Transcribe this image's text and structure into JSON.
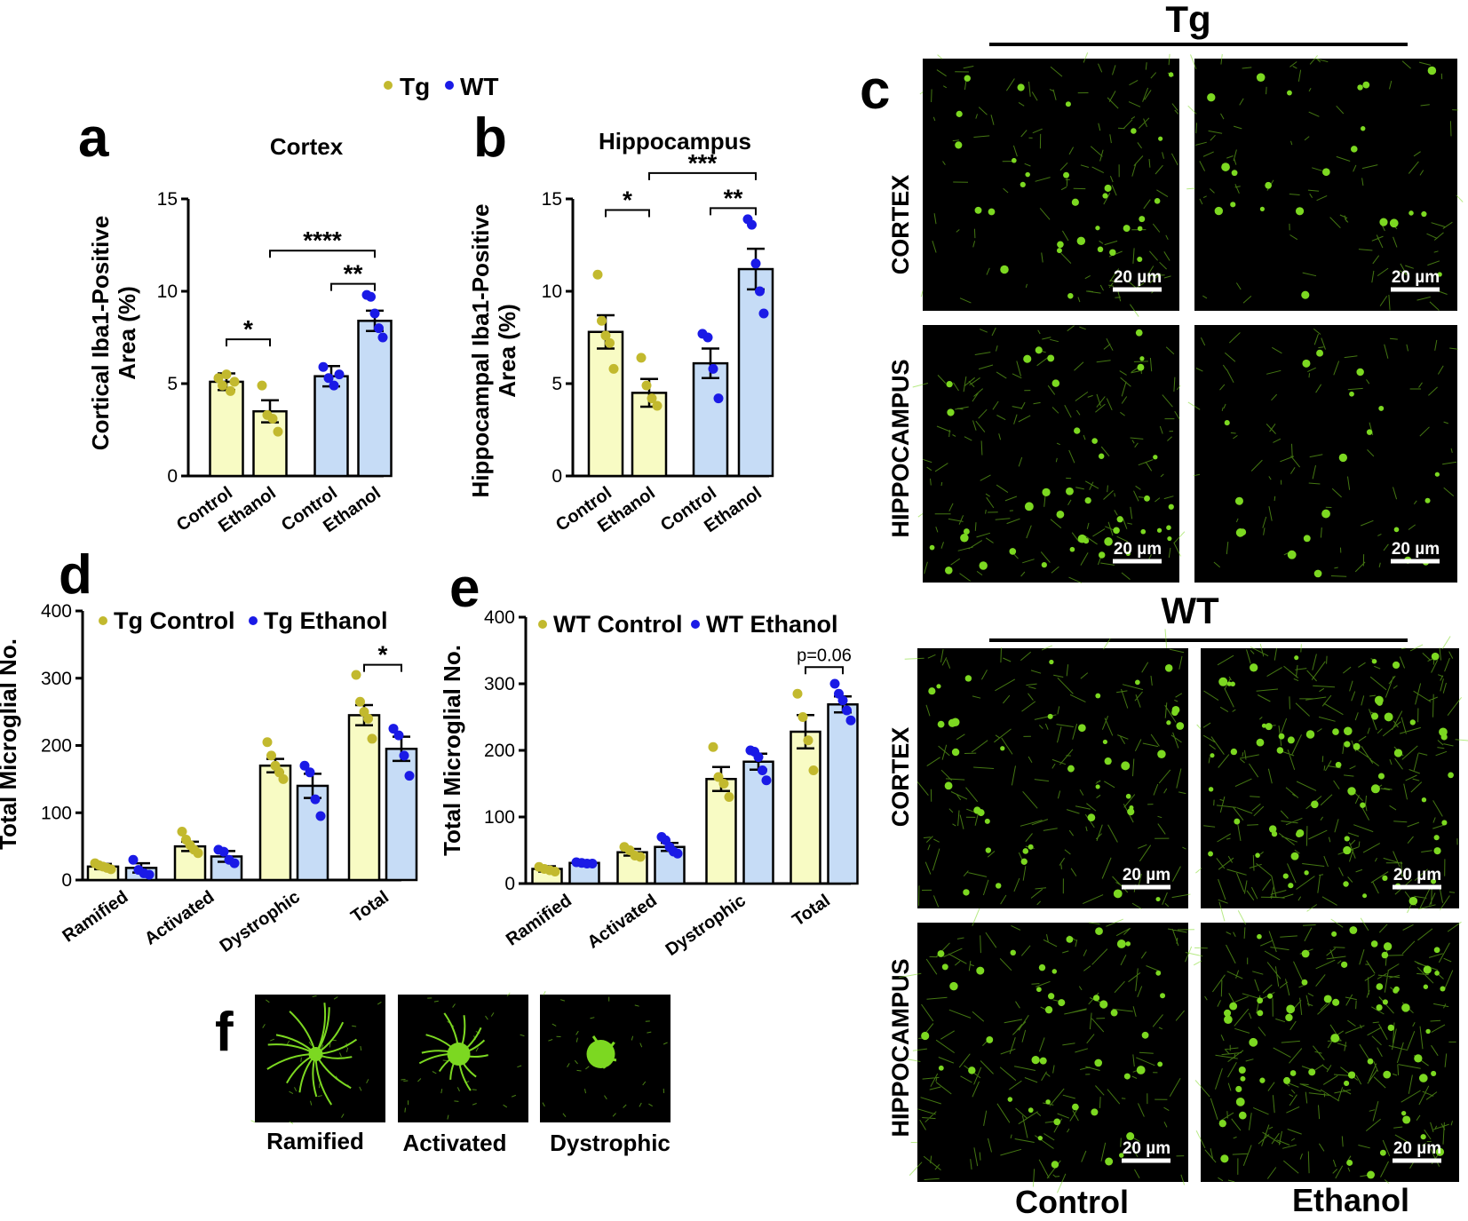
{
  "colors": {
    "tg_fill": "#f8fbc4",
    "tg_dot": "#c2b92e",
    "tg_stroke": "#8a8a1c",
    "wt_fill": "#c6dcf6",
    "wt_dot": "#1a1ae6",
    "microscopy_bg": "#000000",
    "microscopy_cell": "#7cd821"
  },
  "top_legend": {
    "tg": "Tg",
    "wt": "WT"
  },
  "panel_letters": {
    "a": "a",
    "b": "b",
    "c": "c",
    "d": "d",
    "e": "e",
    "f": "f"
  },
  "chart_data": [
    {
      "id": "a",
      "type": "bar",
      "title": "Cortex",
      "ylabel": [
        "Cortical Iba1-Positive",
        "Area (%)"
      ],
      "ylim": [
        0,
        15
      ],
      "yticks": [
        0,
        5,
        10,
        15
      ],
      "categories": [
        "Control",
        "Ethanol",
        "Control",
        "Ethanol"
      ],
      "groups": [
        "Tg",
        "Tg",
        "WT",
        "WT"
      ],
      "values": [
        5.1,
        3.5,
        5.4,
        8.4
      ],
      "errors": [
        0.45,
        0.6,
        0.55,
        0.55
      ],
      "points": [
        [
          5.3,
          4.9,
          5.5,
          4.6,
          5.1
        ],
        [
          4.9,
          3.3,
          3.1,
          2.4
        ],
        [
          5.9,
          5.3,
          4.9,
          5.5
        ],
        [
          9.8,
          9.7,
          8.8,
          8.0,
          7.5
        ]
      ],
      "significance": [
        {
          "from": 0,
          "to": 1,
          "label": "*",
          "y": 7.4
        },
        {
          "from": 3,
          "to": 2,
          "label": "**",
          "y": 10.4
        },
        {
          "from": 1,
          "to": 3,
          "label": "****",
          "y": 12.2
        }
      ]
    },
    {
      "id": "b",
      "type": "bar",
      "title": "Hippocampus",
      "ylabel": [
        "Hippocampal Iba1-Positive",
        "Area (%)"
      ],
      "ylim": [
        0,
        15
      ],
      "yticks": [
        0,
        5,
        10,
        15
      ],
      "categories": [
        "Control",
        "Ethanol",
        "Control",
        "Ethanol"
      ],
      "groups": [
        "Tg",
        "Tg",
        "WT",
        "WT"
      ],
      "values": [
        7.8,
        4.5,
        6.1,
        11.2
      ],
      "errors": [
        0.9,
        0.75,
        0.8,
        1.1
      ],
      "points": [
        [
          10.9,
          8.4,
          7.6,
          7.2,
          5.8
        ],
        [
          6.4,
          4.9,
          4.2,
          3.8
        ],
        [
          7.7,
          7.5,
          5.8,
          4.2
        ],
        [
          13.9,
          13.6,
          11.5,
          10.0,
          8.8
        ]
      ],
      "significance": [
        {
          "from": 0,
          "to": 1,
          "label": "*",
          "y": 14.4
        },
        {
          "from": 2,
          "to": 3,
          "label": "**",
          "y": 14.5
        },
        {
          "from": 1,
          "to": 3,
          "label": "***",
          "y": 16.4
        }
      ]
    },
    {
      "id": "d",
      "type": "bar",
      "legend": [
        "Tg Control",
        "Tg Ethanol"
      ],
      "ylabel": "Total Microglial No.",
      "ylim": [
        0,
        400
      ],
      "yticks": [
        0,
        100,
        200,
        300,
        400
      ],
      "categories": [
        "Ramified",
        "Activated",
        "Dystrophic",
        "Total"
      ],
      "series": [
        {
          "name": "Tg Control",
          "values": [
            20,
            50,
            170,
            245
          ],
          "errors": [
            4,
            7,
            10,
            15
          ],
          "points": [
            [
              25,
              22,
              20,
              18,
              16
            ],
            [
              72,
              60,
              52,
              45,
              40
            ],
            [
              205,
              185,
              170,
              160,
              150
            ],
            [
              305,
              265,
              250,
              240,
              210
            ]
          ]
        },
        {
          "name": "Tg Ethanol",
          "values": [
            18,
            35,
            140,
            195
          ],
          "errors": [
            7,
            8,
            18,
            18
          ],
          "points": [
            [
              30,
              15,
              10,
              8
            ],
            [
              45,
              42,
              30,
              25
            ],
            [
              170,
              160,
              120,
              95
            ],
            [
              225,
              215,
              185,
              155
            ]
          ]
        }
      ],
      "significance": [
        {
          "category": 3,
          "label": "*",
          "y": 320
        }
      ]
    },
    {
      "id": "e",
      "type": "bar",
      "legend": [
        "WT Control",
        "WT Ethanol"
      ],
      "ylabel": "Total Microglial No.",
      "ylim": [
        0,
        400
      ],
      "yticks": [
        0,
        100,
        200,
        300,
        400
      ],
      "categories": [
        "Ramified",
        "Activated",
        "Dystrophic",
        "Total"
      ],
      "series": [
        {
          "name": "WT Control",
          "values": [
            22,
            47,
            157,
            228
          ],
          "errors": [
            4,
            5,
            18,
            25
          ],
          "points": [
            [
              25,
              22,
              20,
              18
            ],
            [
              55,
              50,
              42,
              40
            ],
            [
              205,
              160,
              150,
              130
            ],
            [
              285,
              250,
              215,
              170
            ]
          ]
        },
        {
          "name": "WT Ethanol",
          "values": [
            31,
            55,
            183,
            269
          ],
          "errors": [
            1,
            6,
            12,
            12
          ],
          "points": [
            [
              32,
              31,
              30,
              30
            ],
            [
              70,
              65,
              55,
              48,
              45
            ],
            [
              200,
              198,
              190,
              170,
              155
            ],
            [
              300,
              285,
              275,
              260,
              245
            ]
          ]
        }
      ],
      "significance": [
        {
          "category": 3,
          "label": "p=0.06",
          "y": 325
        }
      ]
    }
  ],
  "panel_c": {
    "tg_header": "Tg",
    "wt_header": "WT",
    "row_labels": [
      "CORTEX",
      "HIPPOCAMPUS",
      "CORTEX",
      "HIPPOCAMPUS"
    ],
    "column_labels": [
      "Control",
      "Ethanol"
    ],
    "scale_bar": "20 µm"
  },
  "panel_f": {
    "labels": [
      "Ramified",
      "Activated",
      "Dystrophic"
    ]
  }
}
